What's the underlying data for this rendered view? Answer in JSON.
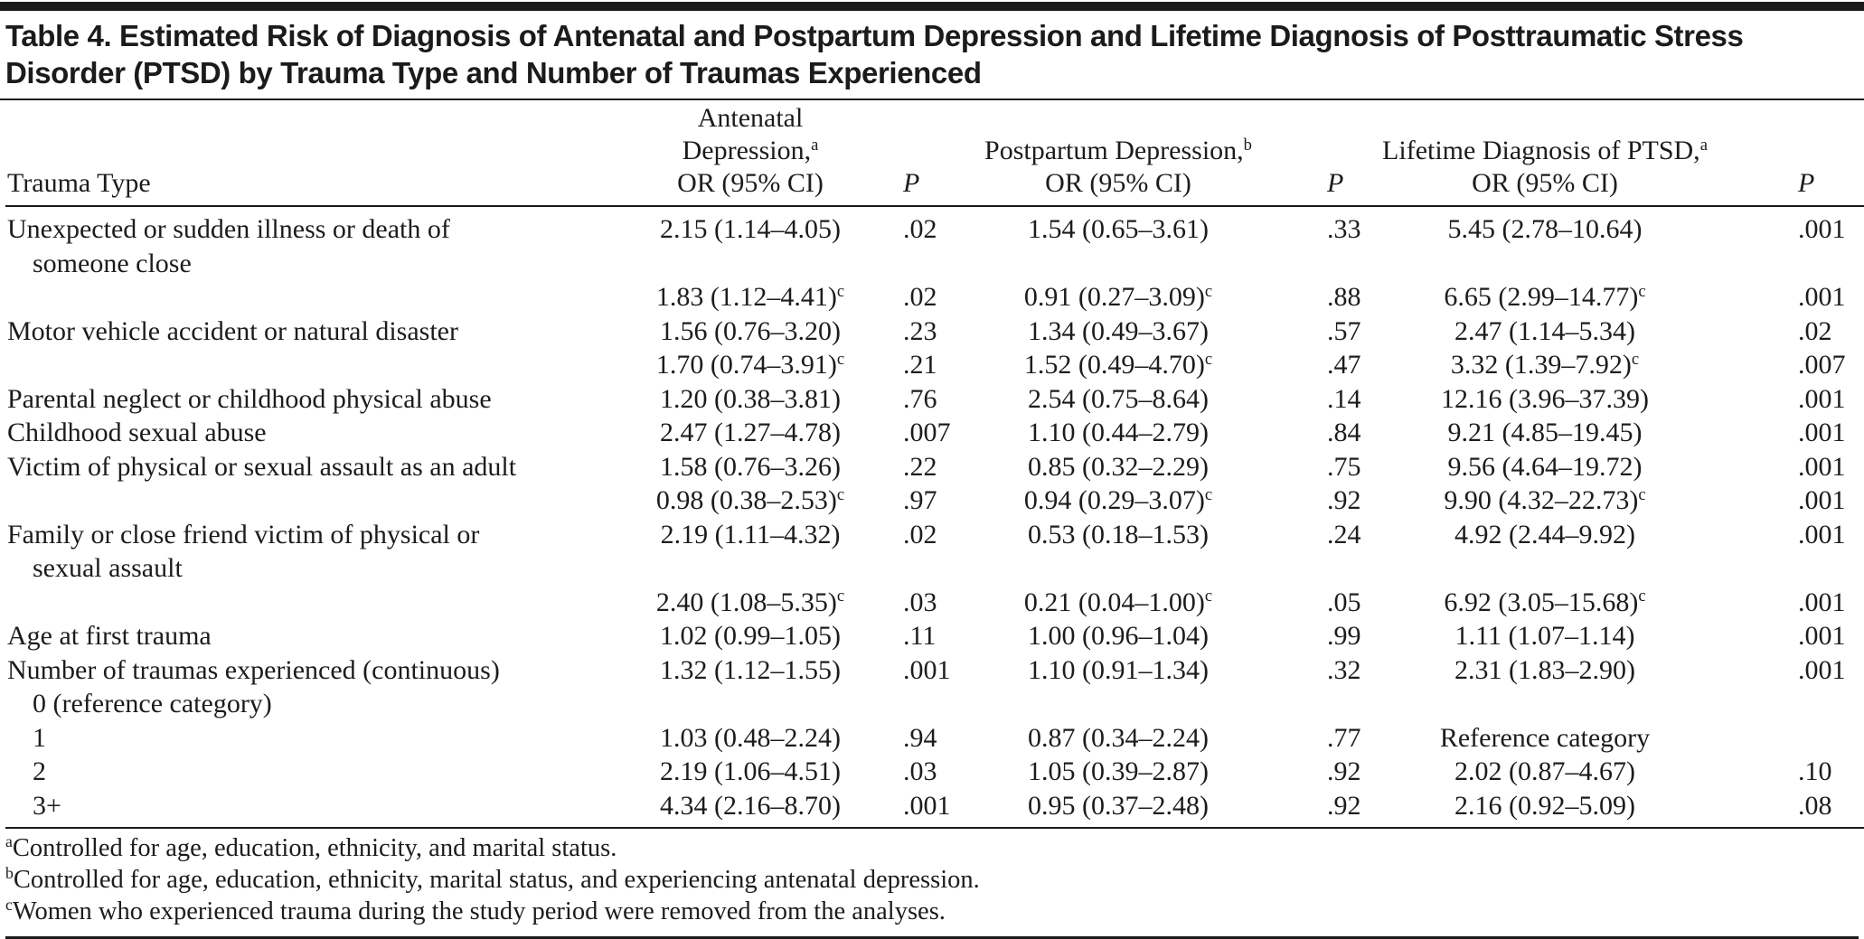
{
  "colors": {
    "ink": "#1c1c1c",
    "rule": "#1a1a1a",
    "background": "#ffffff"
  },
  "title": "Table 4. Estimated Risk of Diagnosis of Antenatal and Postpartum Depression and Lifetime Diagnosis of Posttraumatic Stress Disorder (PTSD) by Trauma Type and Number of Traumas Experienced",
  "table": {
    "columns": {
      "trauma_type": "Trauma Type",
      "antenatal": {
        "line1": "Antenatal Depression,",
        "sup": "a",
        "line2": "OR (95% CI)"
      },
      "postpartum": {
        "line1": "Postpartum Depression,",
        "sup": "b",
        "line2": "OR (95% CI)"
      },
      "ptsd": {
        "line1": "Lifetime Diagnosis of PTSD,",
        "sup": "a",
        "line2": "OR (95% CI)"
      },
      "p_label": "P"
    },
    "rows": [
      {
        "label": [
          "Unexpected or sudden illness or death of",
          "someone close"
        ],
        "antenatal": "2.15 (1.14–4.05)",
        "antenatal_p": ".02",
        "postpartum": "1.54 (0.65–3.61)",
        "postpartum_p": ".33",
        "ptsd": "5.45 (2.78–10.64)",
        "ptsd_p": ".001"
      },
      {
        "label": [],
        "antenatal": {
          "v": "1.83 (1.12–4.41)",
          "sup": "c"
        },
        "antenatal_p": ".02",
        "postpartum": {
          "v": "0.91 (0.27–3.09)",
          "sup": "c"
        },
        "postpartum_p": ".88",
        "ptsd": {
          "v": "6.65 (2.99–14.77)",
          "sup": "c"
        },
        "ptsd_p": ".001"
      },
      {
        "label": [
          "Motor vehicle accident or natural disaster"
        ],
        "antenatal": "1.56 (0.76–3.20)",
        "antenatal_p": ".23",
        "postpartum": "1.34 (0.49–3.67)",
        "postpartum_p": ".57",
        "ptsd": "2.47 (1.14–5.34)",
        "ptsd_p": ".02"
      },
      {
        "label": [],
        "antenatal": {
          "v": "1.70 (0.74–3.91)",
          "sup": "c"
        },
        "antenatal_p": ".21",
        "postpartum": {
          "v": "1.52 (0.49–4.70)",
          "sup": "c"
        },
        "postpartum_p": ".47",
        "ptsd": {
          "v": "3.32 (1.39–7.92)",
          "sup": "c"
        },
        "ptsd_p": ".007"
      },
      {
        "label": [
          "Parental neglect or childhood physical abuse"
        ],
        "antenatal": "1.20 (0.38–3.81)",
        "antenatal_p": ".76",
        "postpartum": "2.54 (0.75–8.64)",
        "postpartum_p": ".14",
        "ptsd": "12.16 (3.96–37.39)",
        "ptsd_p": ".001"
      },
      {
        "label": [
          "Childhood sexual abuse"
        ],
        "antenatal": "2.47 (1.27–4.78)",
        "antenatal_p": ".007",
        "postpartum": "1.10 (0.44–2.79)",
        "postpartum_p": ".84",
        "ptsd": "9.21 (4.85–19.45)",
        "ptsd_p": ".001"
      },
      {
        "label": [
          "Victim of physical or sexual assault as an adult"
        ],
        "antenatal": "1.58 (0.76–3.26)",
        "antenatal_p": ".22",
        "postpartum": "0.85 (0.32–2.29)",
        "postpartum_p": ".75",
        "ptsd": "9.56 (4.64–19.72)",
        "ptsd_p": ".001"
      },
      {
        "label": [],
        "antenatal": {
          "v": "0.98 (0.38–2.53)",
          "sup": "c"
        },
        "antenatal_p": ".97",
        "postpartum": {
          "v": "0.94 (0.29–3.07)",
          "sup": "c"
        },
        "postpartum_p": ".92",
        "ptsd": {
          "v": "9.90 (4.32–22.73)",
          "sup": "c"
        },
        "ptsd_p": ".001"
      },
      {
        "label": [
          "Family or close friend victim of physical or",
          "sexual assault"
        ],
        "antenatal": "2.19 (1.11–4.32)",
        "antenatal_p": ".02",
        "postpartum": "0.53 (0.18–1.53)",
        "postpartum_p": ".24",
        "ptsd": "4.92 (2.44–9.92)",
        "ptsd_p": ".001"
      },
      {
        "label": [],
        "antenatal": {
          "v": "2.40 (1.08–5.35)",
          "sup": "c"
        },
        "antenatal_p": ".03",
        "postpartum": {
          "v": "0.21 (0.04–1.00)",
          "sup": "c"
        },
        "postpartum_p": ".05",
        "ptsd": {
          "v": "6.92 (3.05–15.68)",
          "sup": "c"
        },
        "ptsd_p": ".001"
      },
      {
        "label": [
          "Age at first trauma"
        ],
        "antenatal": "1.02 (0.99–1.05)",
        "antenatal_p": ".11",
        "postpartum": "1.00 (0.96–1.04)",
        "postpartum_p": ".99",
        "ptsd": "1.11 (1.07–1.14)",
        "ptsd_p": ".001"
      },
      {
        "label": [
          "Number of traumas experienced (continuous)"
        ],
        "antenatal": "1.32 (1.12–1.55)",
        "antenatal_p": ".001",
        "postpartum": "1.10 (0.91–1.34)",
        "postpartum_p": ".32",
        "ptsd": "2.31 (1.83–2.90)",
        "ptsd_p": ".001"
      },
      {
        "label": [
          "0 (reference category)"
        ],
        "indent": true,
        "antenatal": "",
        "antenatal_p": "",
        "postpartum": "",
        "postpartum_p": "",
        "ptsd": "",
        "ptsd_p": ""
      },
      {
        "label": [
          "1"
        ],
        "indent": true,
        "antenatal": "1.03 (0.48–2.24)",
        "antenatal_p": ".94",
        "postpartum": "0.87 (0.34–2.24)",
        "postpartum_p": ".77",
        "ptsd": "Reference category",
        "ptsd_p": ""
      },
      {
        "label": [
          "2"
        ],
        "indent": true,
        "antenatal": "2.19 (1.06–4.51)",
        "antenatal_p": ".03",
        "postpartum": "1.05 (0.39–2.87)",
        "postpartum_p": ".92",
        "ptsd": "2.02 (0.87–4.67)",
        "ptsd_p": ".10"
      },
      {
        "label": [
          "3+"
        ],
        "indent": true,
        "antenatal": "4.34 (2.16–8.70)",
        "antenatal_p": ".001",
        "postpartum": "0.95 (0.37–2.48)",
        "postpartum_p": ".92",
        "ptsd": "2.16 (0.92–5.09)",
        "ptsd_p": ".08"
      }
    ]
  },
  "footnotes": [
    {
      "sup": "a",
      "text": "Controlled for age, education, ethnicity, and marital status."
    },
    {
      "sup": "b",
      "text": "Controlled for age, education, ethnicity, marital status, and experiencing antenatal depression."
    },
    {
      "sup": "c",
      "text": "Women who experienced trauma during the study period were removed from the analyses."
    }
  ]
}
